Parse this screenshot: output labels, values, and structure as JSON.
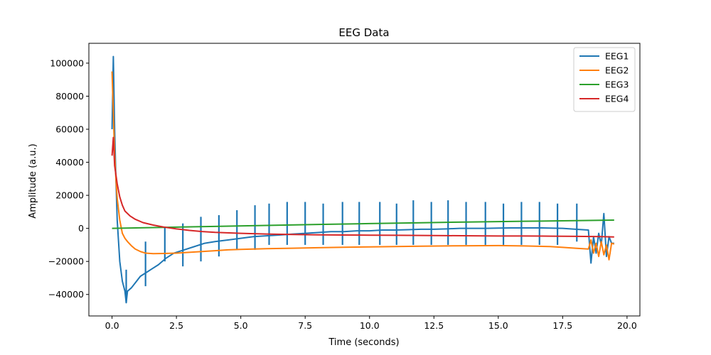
{
  "chart_data": {
    "type": "line",
    "title": "EEG Data",
    "xlabel": "Time (seconds)",
    "ylabel": "Amplitude (a.u.)",
    "xlim": [
      -0.9,
      20.5
    ],
    "ylim": [
      -53000,
      112000
    ],
    "xticks": [
      0.0,
      2.5,
      5.0,
      7.5,
      10.0,
      12.5,
      15.0,
      17.5,
      20.0
    ],
    "xtick_labels": [
      "0.0",
      "2.5",
      "5.0",
      "7.5",
      "10.0",
      "12.5",
      "15.0",
      "17.5",
      "20.0"
    ],
    "yticks": [
      -40000,
      -20000,
      0,
      20000,
      40000,
      60000,
      80000,
      100000
    ],
    "ytick_labels": [
      "−40000",
      "−20000",
      "0",
      "20000",
      "40000",
      "60000",
      "80000",
      "100000"
    ],
    "grid": false,
    "legend_position": "top-right",
    "series": [
      {
        "name": "EEG1",
        "color": "#1f77b4",
        "points": [
          [
            0.0,
            60000
          ],
          [
            0.05,
            104000
          ],
          [
            0.1,
            60000
          ],
          [
            0.15,
            30000
          ],
          [
            0.2,
            5000
          ],
          [
            0.3,
            -20000
          ],
          [
            0.4,
            -32000
          ],
          [
            0.5,
            -38000
          ],
          [
            0.55,
            -45000
          ],
          [
            0.6,
            -38000
          ],
          [
            0.75,
            -36000
          ],
          [
            0.9,
            -33000
          ],
          [
            1.1,
            -29000
          ],
          [
            1.3,
            -27000
          ],
          [
            1.5,
            -25000
          ],
          [
            1.8,
            -22000
          ],
          [
            2.1,
            -18000
          ],
          [
            2.4,
            -15000
          ],
          [
            2.8,
            -13000
          ],
          [
            3.2,
            -11000
          ],
          [
            3.6,
            -9000
          ],
          [
            4.0,
            -8000
          ],
          [
            4.5,
            -7000
          ],
          [
            5.0,
            -6000
          ],
          [
            5.5,
            -5000
          ],
          [
            6.0,
            -4500
          ],
          [
            6.5,
            -4000
          ],
          [
            7.0,
            -3500
          ],
          [
            7.5,
            -3000
          ],
          [
            8.0,
            -2500
          ],
          [
            8.5,
            -2000
          ],
          [
            9.0,
            -2000
          ],
          [
            9.5,
            -1500
          ],
          [
            10.0,
            -1500
          ],
          [
            10.5,
            -1000
          ],
          [
            11.0,
            -1000
          ],
          [
            11.5,
            -800
          ],
          [
            12.0,
            -500
          ],
          [
            12.5,
            -500
          ],
          [
            13.0,
            -300
          ],
          [
            13.5,
            0
          ],
          [
            14.0,
            0
          ],
          [
            14.5,
            0
          ],
          [
            15.0,
            200
          ],
          [
            15.5,
            300
          ],
          [
            16.0,
            300
          ],
          [
            16.5,
            300
          ],
          [
            17.0,
            200
          ],
          [
            17.5,
            0
          ],
          [
            18.0,
            -500
          ],
          [
            18.5,
            -1000
          ],
          [
            18.6,
            -21000
          ],
          [
            18.7,
            -5000
          ],
          [
            18.8,
            -15000
          ],
          [
            18.9,
            -3000
          ],
          [
            19.0,
            -10000
          ],
          [
            19.1,
            9000
          ],
          [
            19.2,
            -17000
          ],
          [
            19.3,
            -5000
          ],
          [
            19.4,
            -9000
          ],
          [
            19.5,
            -9000
          ]
        ],
        "spikes": [
          [
            0.55,
            -45000
          ],
          [
            0.55,
            -25000
          ],
          [
            1.3,
            -35000
          ],
          [
            1.3,
            -8000
          ],
          [
            2.05,
            -20000
          ],
          [
            2.05,
            1000
          ],
          [
            2.75,
            -23000
          ],
          [
            2.75,
            3000
          ],
          [
            3.45,
            -20000
          ],
          [
            3.45,
            7000
          ],
          [
            4.15,
            -17000
          ],
          [
            4.15,
            8000
          ],
          [
            4.85,
            -13000
          ],
          [
            4.85,
            11000
          ],
          [
            5.55,
            -13000
          ],
          [
            5.55,
            14000
          ],
          [
            6.1,
            -10000
          ],
          [
            6.1,
            15000
          ],
          [
            6.8,
            -10000
          ],
          [
            6.8,
            16000
          ],
          [
            7.5,
            -10000
          ],
          [
            7.5,
            16000
          ],
          [
            8.2,
            -10000
          ],
          [
            8.2,
            15000
          ],
          [
            8.95,
            -10000
          ],
          [
            8.95,
            16000
          ],
          [
            9.6,
            -10000
          ],
          [
            9.6,
            16000
          ],
          [
            10.4,
            -10000
          ],
          [
            10.4,
            16000
          ],
          [
            11.05,
            -10000
          ],
          [
            11.05,
            15000
          ],
          [
            11.7,
            -10000
          ],
          [
            11.7,
            17000
          ],
          [
            12.4,
            -10000
          ],
          [
            12.4,
            16000
          ],
          [
            13.05,
            -10000
          ],
          [
            13.05,
            17000
          ],
          [
            13.75,
            -10000
          ],
          [
            13.75,
            16000
          ],
          [
            14.5,
            -10000
          ],
          [
            14.5,
            16000
          ],
          [
            15.2,
            -10000
          ],
          [
            15.2,
            15000
          ],
          [
            15.9,
            -10000
          ],
          [
            15.9,
            16000
          ],
          [
            16.6,
            -10000
          ],
          [
            16.6,
            16000
          ],
          [
            17.3,
            -10000
          ],
          [
            17.3,
            15000
          ],
          [
            18.05,
            -8000
          ],
          [
            18.05,
            15000
          ]
        ]
      },
      {
        "name": "EEG2",
        "color": "#ff7f0e",
        "points": [
          [
            0.0,
            95000
          ],
          [
            0.05,
            70000
          ],
          [
            0.1,
            45000
          ],
          [
            0.15,
            30000
          ],
          [
            0.2,
            18000
          ],
          [
            0.3,
            5000
          ],
          [
            0.4,
            -3000
          ],
          [
            0.5,
            -6000
          ],
          [
            0.6,
            -8000
          ],
          [
            0.75,
            -10500
          ],
          [
            0.9,
            -12500
          ],
          [
            1.1,
            -14000
          ],
          [
            1.3,
            -15000
          ],
          [
            1.6,
            -15300
          ],
          [
            2.0,
            -15200
          ],
          [
            2.5,
            -15000
          ],
          [
            3.0,
            -14500
          ],
          [
            3.5,
            -14000
          ],
          [
            4.0,
            -13500
          ],
          [
            4.5,
            -13000
          ],
          [
            5.0,
            -12700
          ],
          [
            6.0,
            -12300
          ],
          [
            7.0,
            -12000
          ],
          [
            8.0,
            -11700
          ],
          [
            9.0,
            -11400
          ],
          [
            10.0,
            -11200
          ],
          [
            11.0,
            -11000
          ],
          [
            12.0,
            -10800
          ],
          [
            13.0,
            -10600
          ],
          [
            14.0,
            -10500
          ],
          [
            15.0,
            -10400
          ],
          [
            16.0,
            -10600
          ],
          [
            17.0,
            -11000
          ],
          [
            17.5,
            -11500
          ],
          [
            18.0,
            -12000
          ],
          [
            18.5,
            -12500
          ],
          [
            18.6,
            -7000
          ],
          [
            18.7,
            -15000
          ],
          [
            18.8,
            -9000
          ],
          [
            18.9,
            -17000
          ],
          [
            19.0,
            -8000
          ],
          [
            19.1,
            -16000
          ],
          [
            19.2,
            -10000
          ],
          [
            19.3,
            -19000
          ],
          [
            19.4,
            -9000
          ],
          [
            19.5,
            -9500
          ]
        ]
      },
      {
        "name": "EEG3",
        "color": "#2ca02c",
        "points": [
          [
            0.0,
            0
          ],
          [
            2.0,
            600
          ],
          [
            4.0,
            1200
          ],
          [
            6.0,
            1800
          ],
          [
            8.0,
            2400
          ],
          [
            10.0,
            2900
          ],
          [
            12.0,
            3400
          ],
          [
            14.0,
            3900
          ],
          [
            16.0,
            4300
          ],
          [
            18.0,
            4700
          ],
          [
            19.5,
            5000
          ]
        ]
      },
      {
        "name": "EEG4",
        "color": "#d62728",
        "points": [
          [
            0.0,
            44000
          ],
          [
            0.05,
            55000
          ],
          [
            0.1,
            38000
          ],
          [
            0.2,
            27000
          ],
          [
            0.3,
            19000
          ],
          [
            0.4,
            14000
          ],
          [
            0.5,
            10500
          ],
          [
            0.7,
            7500
          ],
          [
            0.9,
            5500
          ],
          [
            1.2,
            3500
          ],
          [
            1.6,
            2000
          ],
          [
            2.0,
            800
          ],
          [
            2.5,
            -300
          ],
          [
            3.0,
            -1200
          ],
          [
            3.5,
            -1900
          ],
          [
            4.0,
            -2400
          ],
          [
            5.0,
            -3000
          ],
          [
            6.0,
            -3400
          ],
          [
            7.0,
            -3700
          ],
          [
            8.0,
            -3900
          ],
          [
            9.0,
            -4000
          ],
          [
            10.0,
            -4100
          ],
          [
            11.0,
            -4200
          ],
          [
            12.0,
            -4300
          ],
          [
            13.0,
            -4400
          ],
          [
            14.0,
            -4500
          ],
          [
            15.0,
            -4600
          ],
          [
            16.0,
            -4600
          ],
          [
            17.0,
            -4700
          ],
          [
            18.0,
            -4800
          ],
          [
            19.0,
            -5000
          ],
          [
            19.5,
            -5200
          ]
        ]
      }
    ]
  }
}
